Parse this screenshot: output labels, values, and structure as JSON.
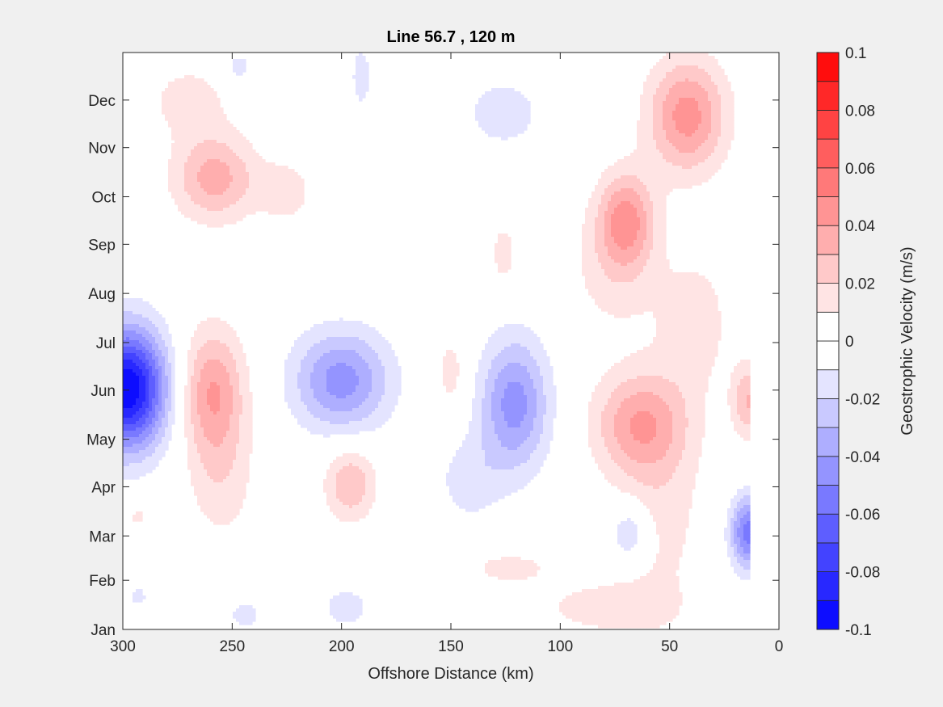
{
  "chart_data": {
    "type": "contour",
    "title": "Line 56.7 , 120 m",
    "xlabel": "Offshore Distance (km)",
    "xlim": [
      300,
      0
    ],
    "x_ticks": [
      300,
      250,
      200,
      150,
      100,
      50,
      0
    ],
    "x_tick_labels": [
      "300",
      "250",
      "200",
      "150",
      "100",
      "50",
      "0"
    ],
    "y_ticks": [
      "Jan",
      "Feb",
      "Mar",
      "Apr",
      "May",
      "Jun",
      "Jul",
      "Aug",
      "Sep",
      "Oct",
      "Nov",
      "Dec"
    ],
    "y_tick_days": [
      1,
      32,
      60,
      91,
      121,
      152,
      182,
      213,
      244,
      274,
      305,
      335
    ],
    "ylim_days": [
      1,
      365
    ],
    "colorbar": {
      "label": "Geostrophic Velocity (m/s)",
      "min": -0.1,
      "max": 0.1,
      "step": 0.01,
      "tick_values": [
        -0.1,
        -0.08,
        -0.06,
        -0.04,
        -0.02,
        0,
        0.02,
        0.04,
        0.06,
        0.08,
        0.1
      ],
      "tick_labels": [
        "-0.1",
        "-0.08",
        "-0.06",
        "-0.04",
        "-0.02",
        "0",
        "0.02",
        "0.04",
        "0.06",
        "0.08",
        "0.1"
      ],
      "low_color": "#0000ff",
      "zero_color": "#ffffff",
      "high_color": "#ff0000"
    },
    "features": [
      {
        "sign": -1,
        "peak": 0.1,
        "x_km": 298,
        "day": 153,
        "half_width_km": 17,
        "half_height_days": 36
      },
      {
        "sign": 1,
        "peak": 0.04,
        "x_km": 259,
        "day": 151,
        "half_width_km": 14,
        "half_height_days": 38
      },
      {
        "sign": 1,
        "peak": 0.015,
        "x_km": 255,
        "day": 95,
        "half_width_km": 15,
        "half_height_days": 40
      },
      {
        "sign": 1,
        "peak": 0.035,
        "x_km": 258,
        "day": 286,
        "half_width_km": 18,
        "half_height_days": 26
      },
      {
        "sign": 1,
        "peak": 0.015,
        "x_km": 270,
        "day": 335,
        "half_width_km": 18,
        "half_height_days": 22
      },
      {
        "sign": 1,
        "peak": 0.015,
        "x_km": 225,
        "day": 277,
        "half_width_km": 12,
        "half_height_days": 20
      },
      {
        "sign": -1,
        "peak": 0.045,
        "x_km": 200,
        "day": 158,
        "half_width_km": 21,
        "half_height_days": 30
      },
      {
        "sign": 1,
        "peak": 0.03,
        "x_km": 196,
        "day": 93,
        "half_width_km": 11,
        "half_height_days": 22
      },
      {
        "sign": -1,
        "peak": 0.015,
        "x_km": 198,
        "day": 15,
        "half_width_km": 12,
        "half_height_days": 14
      },
      {
        "sign": -1,
        "peak": 0.015,
        "x_km": 244,
        "day": 10,
        "half_width_km": 8,
        "half_height_days": 10
      },
      {
        "sign": -1,
        "peak": 0.015,
        "x_km": 247,
        "day": 356,
        "half_width_km": 6,
        "half_height_days": 10
      },
      {
        "sign": -1,
        "peak": 0.015,
        "x_km": 191,
        "day": 350,
        "half_width_km": 5,
        "half_height_days": 22
      },
      {
        "sign": 1,
        "peak": 0.015,
        "x_km": 150,
        "day": 163,
        "half_width_km": 7,
        "half_height_days": 24
      },
      {
        "sign": 1,
        "peak": 0.015,
        "x_km": 126,
        "day": 238,
        "half_width_km": 6,
        "half_height_days": 20
      },
      {
        "sign": -1,
        "peak": 0.045,
        "x_km": 121,
        "day": 143,
        "half_width_km": 15,
        "half_height_days": 40
      },
      {
        "sign": -1,
        "peak": 0.015,
        "x_km": 142,
        "day": 95,
        "half_width_km": 14,
        "half_height_days": 26
      },
      {
        "sign": -1,
        "peak": 0.015,
        "x_km": 126,
        "day": 327,
        "half_width_km": 19,
        "half_height_days": 24
      },
      {
        "sign": 1,
        "peak": 0.015,
        "x_km": 123,
        "day": 40,
        "half_width_km": 18,
        "half_height_days": 10
      },
      {
        "sign": -1,
        "peak": 0.025,
        "x_km": 68,
        "day": 62,
        "half_width_km": 9,
        "half_height_days": 18
      },
      {
        "sign": 1,
        "peak": 0.035,
        "x_km": 64,
        "day": 131,
        "half_width_km": 20,
        "half_height_days": 30
      },
      {
        "sign": 1,
        "peak": 0.015,
        "x_km": 55,
        "day": 80,
        "half_width_km": 20,
        "half_height_days": 70
      },
      {
        "sign": 1,
        "peak": 0.015,
        "x_km": 80,
        "day": 15,
        "half_width_km": 30,
        "half_height_days": 16
      },
      {
        "sign": 1,
        "peak": 0.04,
        "x_km": 70,
        "day": 260,
        "half_width_km": 12,
        "half_height_days": 28
      },
      {
        "sign": 1,
        "peak": 0.015,
        "x_km": 75,
        "day": 230,
        "half_width_km": 20,
        "half_height_days": 40
      },
      {
        "sign": 1,
        "peak": 0.045,
        "x_km": 42,
        "day": 325,
        "half_width_km": 17,
        "half_height_days": 34
      },
      {
        "sign": 1,
        "peak": 0.015,
        "x_km": 38,
        "day": 195,
        "half_width_km": 16,
        "half_height_days": 42
      },
      {
        "sign": 1,
        "peak": 0.03,
        "x_km": 14,
        "day": 145,
        "half_width_km": 7,
        "half_height_days": 22
      },
      {
        "sign": -1,
        "peak": 0.055,
        "x_km": 14,
        "day": 62,
        "half_width_km": 8,
        "half_height_days": 22
      },
      {
        "sign": 1,
        "peak": 0.015,
        "x_km": 293,
        "day": 72,
        "half_width_km": 4,
        "half_height_days": 6
      },
      {
        "sign": -1,
        "peak": 0.015,
        "x_km": 293,
        "day": 22,
        "half_width_km": 4,
        "half_height_days": 7
      }
    ]
  }
}
